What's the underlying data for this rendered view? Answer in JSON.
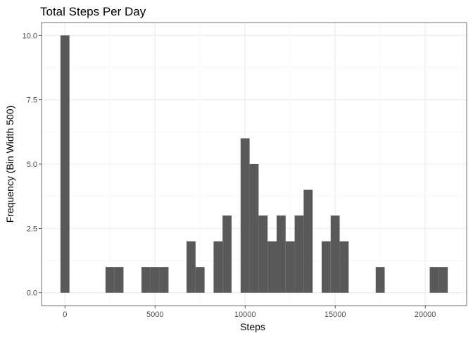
{
  "chart_data": {
    "type": "bar",
    "title": "Total Steps Per Day",
    "xlabel": "Steps",
    "ylabel": "Frequency (Bin Width 500)",
    "binwidth": 500,
    "xlim": [
      -1300,
      22300
    ],
    "ylim": [
      -0.5,
      10.5
    ],
    "xticks": [
      0,
      5000,
      10000,
      15000,
      20000
    ],
    "xtick_labels": [
      "0",
      "5000",
      "10000",
      "15000",
      "20000"
    ],
    "yticks": [
      0,
      2.5,
      5,
      7.5,
      10
    ],
    "ytick_labels": [
      "0.0",
      "2.5",
      "5.0",
      "7.5",
      "10.0"
    ],
    "grid": true,
    "bar_color": "#595959",
    "bins": [
      {
        "x0": -250,
        "x1": 250,
        "count": 10
      },
      {
        "x0": 2250,
        "x1": 2750,
        "count": 1
      },
      {
        "x0": 2750,
        "x1": 3250,
        "count": 1
      },
      {
        "x0": 4250,
        "x1": 4750,
        "count": 1
      },
      {
        "x0": 4750,
        "x1": 5250,
        "count": 1
      },
      {
        "x0": 5250,
        "x1": 5750,
        "count": 1
      },
      {
        "x0": 6750,
        "x1": 7250,
        "count": 2
      },
      {
        "x0": 7250,
        "x1": 7750,
        "count": 1
      },
      {
        "x0": 8250,
        "x1": 8750,
        "count": 2
      },
      {
        "x0": 8750,
        "x1": 9250,
        "count": 3
      },
      {
        "x0": 9750,
        "x1": 10250,
        "count": 6
      },
      {
        "x0": 10250,
        "x1": 10750,
        "count": 5
      },
      {
        "x0": 10750,
        "x1": 11250,
        "count": 3
      },
      {
        "x0": 11250,
        "x1": 11750,
        "count": 2
      },
      {
        "x0": 11750,
        "x1": 12250,
        "count": 3
      },
      {
        "x0": 12250,
        "x1": 12750,
        "count": 2
      },
      {
        "x0": 12750,
        "x1": 13250,
        "count": 3
      },
      {
        "x0": 13250,
        "x1": 13750,
        "count": 4
      },
      {
        "x0": 14250,
        "x1": 14750,
        "count": 2
      },
      {
        "x0": 14750,
        "x1": 15250,
        "count": 3
      },
      {
        "x0": 15250,
        "x1": 15750,
        "count": 2
      },
      {
        "x0": 17250,
        "x1": 17750,
        "count": 1
      },
      {
        "x0": 20250,
        "x1": 20750,
        "count": 1
      },
      {
        "x0": 20750,
        "x1": 21250,
        "count": 1
      }
    ]
  }
}
